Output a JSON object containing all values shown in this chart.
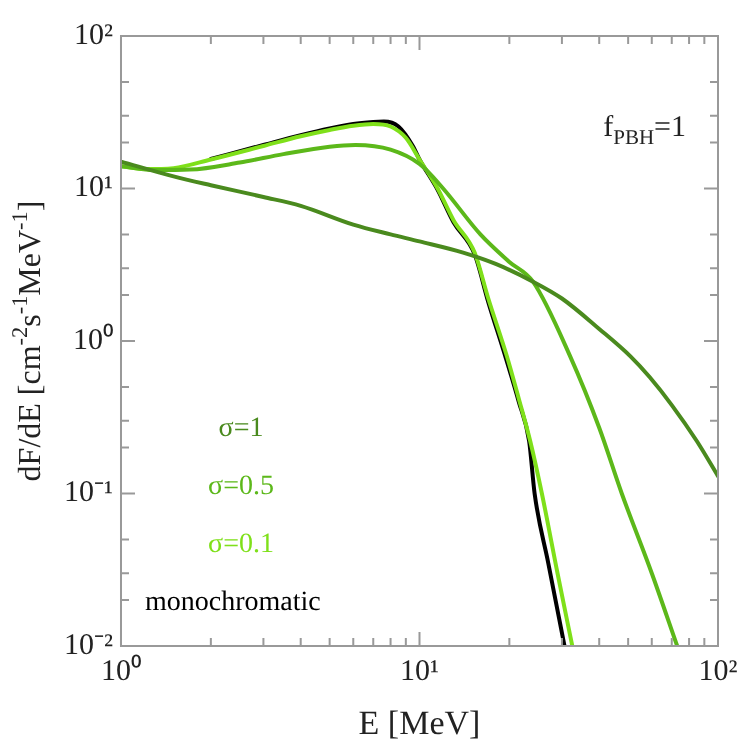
{
  "chart_data": {
    "type": "line",
    "xlabel": "E [MeV]",
    "ylabel": "dF/dE [cm$^{-2}$s$^{-1}$MeV$^{-1}$]",
    "annotations": [
      "f$_{PBH}$=1"
    ],
    "log": "xy",
    "grid": false,
    "legend": "bottom left",
    "marker": "none",
    "line_style": "solid",
    "xlim": [
      1,
      100
    ],
    "ylim": [
      0.01,
      100
    ],
    "xticks": [
      {
        "value": 1,
        "label": "10⁰"
      },
      {
        "value": 2,
        "label": null
      },
      {
        "value": 3,
        "label": null
      },
      {
        "value": 4,
        "label": null
      },
      {
        "value": 5,
        "label": null
      },
      {
        "value": 6,
        "label": null
      },
      {
        "value": 7,
        "label": null
      },
      {
        "value": 8,
        "label": null
      },
      {
        "value": 9,
        "label": null
      },
      {
        "value": 10,
        "label": "10¹"
      },
      {
        "value": 20,
        "label": null
      },
      {
        "value": 30,
        "label": null
      },
      {
        "value": 40,
        "label": null
      },
      {
        "value": 50,
        "label": null
      },
      {
        "value": 60,
        "label": null
      },
      {
        "value": 70,
        "label": null
      },
      {
        "value": 80,
        "label": null
      },
      {
        "value": 90,
        "label": null
      },
      {
        "value": 100,
        "label": "10²"
      }
    ],
    "yticks": [
      {
        "value": 0.01,
        "label": "10⁻²"
      },
      {
        "value": 0.02,
        "label": null
      },
      {
        "value": 0.03,
        "label": null
      },
      {
        "value": 0.05,
        "label": null
      },
      {
        "value": 0.1,
        "label": "10⁻¹"
      },
      {
        "value": 0.2,
        "label": null
      },
      {
        "value": 0.3,
        "label": null
      },
      {
        "value": 0.5,
        "label": null
      },
      {
        "value": 1,
        "label": "10⁰"
      },
      {
        "value": 2,
        "label": null
      },
      {
        "value": 3,
        "label": null
      },
      {
        "value": 5,
        "label": null
      },
      {
        "value": 10,
        "label": "10¹"
      },
      {
        "value": 20,
        "label": null
      },
      {
        "value": 30,
        "label": null
      },
      {
        "value": 50,
        "label": null
      },
      {
        "value": 100,
        "label": "10²"
      }
    ],
    "series": [
      {
        "name": "σ=1",
        "color": "#4a8a1e",
        "x": [
          1,
          1.5,
          2,
          3,
          4,
          6,
          8,
          10,
          14,
          18,
          24,
          30,
          40,
          51,
          59,
          70,
          85,
          100
        ],
        "values": [
          15,
          12,
          10.5,
          8.8,
          7.7,
          5.8,
          5,
          4.5,
          3.8,
          3.2,
          2.45,
          1.9,
          1.2,
          0.79,
          0.58,
          0.38,
          0.22,
          0.13
        ]
      },
      {
        "name": "σ=0.5",
        "color": "#5cb81a",
        "x": [
          1,
          1.3,
          1.7,
          2.5,
          3.5,
          5,
          6.1,
          8,
          10,
          12,
          16,
          20,
          24,
          32,
          40,
          47.6,
          60,
          73
        ],
        "values": [
          14,
          13.2,
          13.3,
          14.8,
          16.8,
          18.8,
          19.3,
          18,
          14.5,
          10,
          5,
          3.3,
          2.45,
          0.79,
          0.27,
          0.1,
          0.03,
          0.01
        ]
      },
      {
        "name": "σ=0.1",
        "color": "#7fe01a",
        "x": [
          1,
          1.2,
          1.5,
          2,
          3,
          4,
          5,
          6,
          7,
          8,
          9,
          10,
          11.5,
          13,
          15.3,
          17,
          19.6,
          21.5,
          23.5,
          25.7,
          29,
          32.5
        ],
        "values": [
          14,
          13.4,
          13.6,
          15.5,
          19,
          22,
          24.2,
          25.8,
          26.5,
          25.5,
          21.5,
          15.5,
          10,
          6.2,
          3.8,
          1.9,
          0.8,
          0.42,
          0.22,
          0.1,
          0.03,
          0.01
        ]
      },
      {
        "name": "monochromatic",
        "color": "#000000",
        "x": [
          2,
          3,
          4,
          5,
          6,
          7,
          7.6,
          8.5,
          9.5,
          10,
          11.5,
          13,
          15.3,
          17,
          19.4,
          21.5,
          23.3,
          24.3,
          27,
          30.6
        ],
        "values": [
          15.6,
          19.3,
          22.4,
          24.8,
          26.5,
          27.3,
          27.5,
          25.5,
          19,
          15.5,
          9.8,
          6,
          3.7,
          1.8,
          0.79,
          0.4,
          0.22,
          0.1,
          0.035,
          0.01
        ]
      }
    ]
  }
}
